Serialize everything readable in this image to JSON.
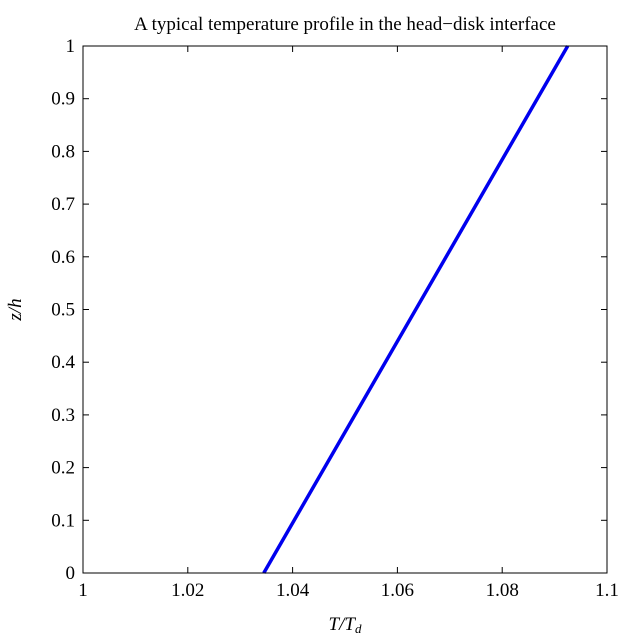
{
  "chart_data": {
    "type": "line",
    "title": "A typical temperature profile in the head−disk interface",
    "xlabel": "T/T",
    "xlabel_subscript": "d",
    "ylabel": "z/h",
    "xlim": [
      1,
      1.1
    ],
    "ylim": [
      0,
      1
    ],
    "xticks": [
      1,
      1.02,
      1.04,
      1.06,
      1.08,
      1.1
    ],
    "xtick_labels": [
      "1",
      "1.02",
      "1.04",
      "1.06",
      "1.08",
      "1.1"
    ],
    "yticks": [
      0,
      0.1,
      0.2,
      0.3,
      0.4,
      0.5,
      0.6,
      0.7,
      0.8,
      0.9,
      1
    ],
    "ytick_labels": [
      "0",
      "0.1",
      "0.2",
      "0.3",
      "0.4",
      "0.5",
      "0.6",
      "0.7",
      "0.8",
      "0.9",
      "1"
    ],
    "grid": false,
    "legend": "none",
    "series": [
      {
        "color": "#0000ee",
        "x": [
          1.0345,
          1.0925
        ],
        "y": [
          0,
          1
        ]
      }
    ]
  }
}
